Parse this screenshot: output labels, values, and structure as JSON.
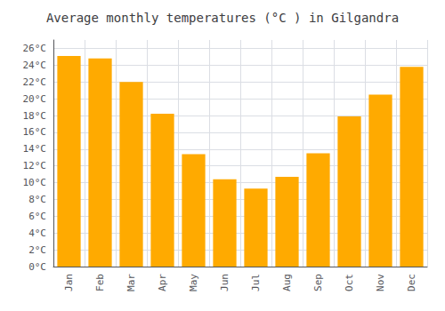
{
  "chart_data": {
    "type": "bar",
    "title": "Average monthly temperatures (°C ) in Gilgandra",
    "categories": [
      "Jan",
      "Feb",
      "Mar",
      "Apr",
      "May",
      "Jun",
      "Jul",
      "Aug",
      "Sep",
      "Oct",
      "Nov",
      "Dec"
    ],
    "values": [
      25.1,
      24.8,
      22.0,
      18.2,
      13.4,
      10.4,
      9.3,
      10.7,
      13.5,
      17.9,
      20.5,
      23.8
    ],
    "color": "#FFAA00",
    "ylim": [
      0,
      27
    ],
    "yticks": [
      {
        "value": 0,
        "label": "0°C"
      },
      {
        "value": 2,
        "label": "2°C"
      },
      {
        "value": 4,
        "label": "4°C"
      },
      {
        "value": 6,
        "label": "6°C"
      },
      {
        "value": 8,
        "label": "8°C"
      },
      {
        "value": 10,
        "label": "10°C"
      },
      {
        "value": 12,
        "label": "12°C"
      },
      {
        "value": 14,
        "label": "14°C"
      },
      {
        "value": 16,
        "label": "16°C"
      },
      {
        "value": 18,
        "label": "18°C"
      },
      {
        "value": 20,
        "label": "20°C"
      },
      {
        "value": 22,
        "label": "22°C"
      },
      {
        "value": 24,
        "label": "24°C"
      },
      {
        "value": 26,
        "label": "26°C"
      }
    ],
    "grid": true
  }
}
